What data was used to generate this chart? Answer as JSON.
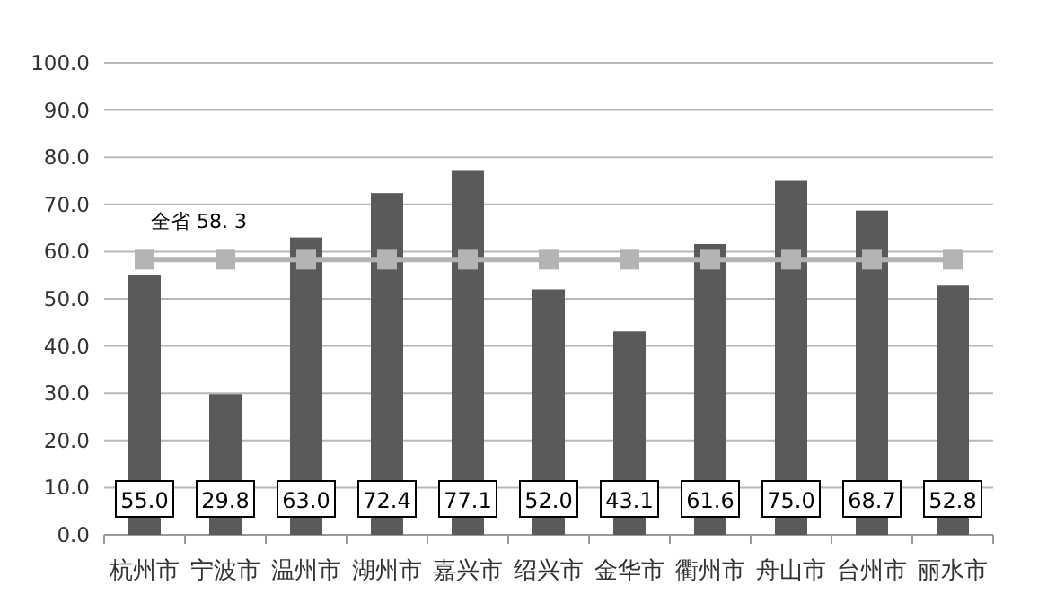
{
  "chart_data": {
    "type": "bar",
    "categories": [
      "杭州市",
      "宁波市",
      "温州市",
      "湖州市",
      "嘉兴市",
      "绍兴市",
      "金华市",
      "衢州市",
      "舟山市",
      "台州市",
      "丽水市"
    ],
    "series": [
      {
        "color": "#5a5a5a",
        "values": [
          55.0,
          29.8,
          63.0,
          72.4,
          77.1,
          52.0,
          43.1,
          61.6,
          75.0,
          68.7,
          52.8
        ],
        "value_labels": [
          "55.0",
          "29.8",
          "63.0",
          "72.4",
          "77.1",
          "52.0",
          "43.1",
          "61.6",
          "75.0",
          "68.7",
          "52.8"
        ]
      },
      {
        "type": "line",
        "color": "#b4b4b4",
        "marker": "square",
        "values": [
          58.3,
          58.3,
          58.3,
          58.3,
          58.3,
          58.3,
          58.3,
          58.3,
          58.3,
          58.3,
          58.3
        ]
      }
    ],
    "ylim": [
      0,
      100
    ],
    "yticks": [
      {
        "value": 0,
        "label": "0.0"
      },
      {
        "value": 10,
        "label": "10.0"
      },
      {
        "value": 20,
        "label": "20.0"
      },
      {
        "value": 30,
        "label": "30.0"
      },
      {
        "value": 40,
        "label": "40.0"
      },
      {
        "value": 50,
        "label": "50.0"
      },
      {
        "value": 60,
        "label": "60.0"
      },
      {
        "value": 70,
        "label": "70.0"
      },
      {
        "value": 80,
        "label": "80.0"
      },
      {
        "value": 90,
        "label": "90.0"
      },
      {
        "value": 100,
        "label": "100.0"
      }
    ],
    "grid": "y",
    "annotations": [
      "全省 58. 3"
    ]
  }
}
